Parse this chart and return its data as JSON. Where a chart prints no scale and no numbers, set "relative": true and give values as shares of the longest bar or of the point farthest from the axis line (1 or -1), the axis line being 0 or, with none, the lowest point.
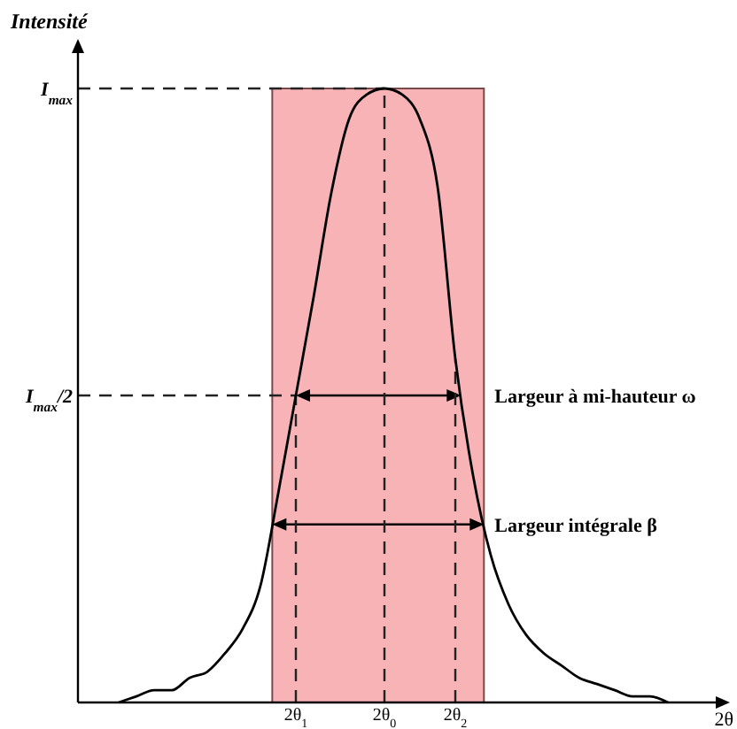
{
  "chart_data": {
    "type": "line",
    "relative": true,
    "ylabel": "Intensité",
    "xlabel": "2θ",
    "grid": false,
    "marker": "none",
    "line_style": "solid",
    "categories": [
      null,
      null,
      null,
      null,
      null,
      null,
      null,
      null,
      null,
      null,
      "2θ$_{1}$",
      null,
      null,
      null,
      null,
      "2θ$_{0}$",
      null,
      null,
      null,
      "2θ$_{2}$",
      null,
      null,
      null,
      null,
      null,
      null,
      null,
      null,
      null,
      null,
      null,
      null
    ],
    "series": [
      {
        "color": "#000000",
        "values": [
          0.0,
          0.01,
          0.02,
          0.02,
          0.04,
          0.05,
          0.08,
          0.12,
          0.19,
          0.34,
          0.5,
          0.66,
          0.83,
          0.95,
          0.99,
          1,
          0.99,
          0.95,
          0.84,
          0.56,
          0.37,
          0.24,
          0.16,
          0.11,
          0.08,
          0.06,
          0.04,
          0.03,
          0.02,
          0.01,
          0.01,
          0.0
        ]
      }
    ],
    "ref_lines": [
      {
        "axis": "y",
        "value": 1,
        "line_style": "dashed",
        "label": "I$_{max}$"
      },
      {
        "axis": "y",
        "value": 0.5,
        "line_style": "dashed",
        "label": "I$_{max}$/2"
      },
      {
        "axis": "y",
        "value": 0.5,
        "label": "Largeur à mi-hauteur ω"
      },
      {
        "axis": "y",
        "value": 0.29,
        "label": "Largeur intégrale β"
      },
      {
        "axis": "x",
        "value": "2θ$_{1}$",
        "line_style": "dashed"
      },
      {
        "axis": "x",
        "value": "2θ$_{0}$",
        "line_style": "dashed"
      },
      {
        "axis": "x",
        "value": "2θ$_{2}$",
        "line_style": "dashed"
      }
    ]
  }
}
